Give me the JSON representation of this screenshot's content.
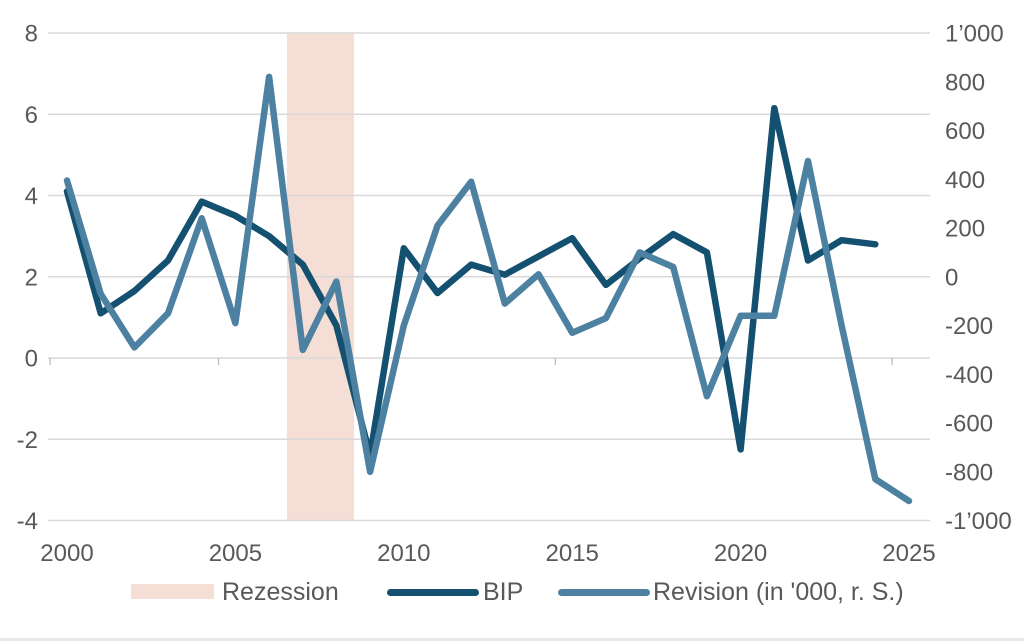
{
  "chart_data": {
    "type": "line",
    "title": "",
    "grid": true,
    "legend_position": "bottom",
    "colors": {
      "bip": "#14506F",
      "revision": "#4D81A2",
      "band": "#F5DED6",
      "gridline": "#D9D9D9",
      "axis_text": "#595959",
      "boundary_tick": "#BFBFBF"
    },
    "x_axis": {
      "min": 2000,
      "max": 2025,
      "tick_labels": [
        "2000",
        "2005",
        "2010",
        "2015",
        "2020",
        "2025"
      ],
      "tick_years": [
        2000,
        2005,
        2010,
        2015,
        2020,
        2025
      ],
      "boundary_tick_years": [
        1999.5,
        2004.5,
        2009.5,
        2014.5,
        2019.5,
        2024.5
      ]
    },
    "left_axis": {
      "min": -4,
      "max": 8,
      "tick_labels": [
        "8",
        "6",
        "4",
        "2",
        "0",
        "-2",
        "-4"
      ],
      "tick_values": [
        8,
        6,
        4,
        2,
        0,
        -2,
        -4
      ]
    },
    "right_axis": {
      "min": -1000,
      "max": 1000,
      "tick_labels": [
        "1’000",
        "800",
        "600",
        "400",
        "200",
        "0",
        "-200",
        "-400",
        "-600",
        "-800",
        "-1’000"
      ],
      "tick_values": [
        1000,
        800,
        600,
        400,
        200,
        0,
        -200,
        -400,
        -600,
        -800,
        -1000
      ]
    },
    "recession_band": {
      "label": "Rezession",
      "x_start": 2006.53,
      "x_end": 2008.52
    },
    "series": [
      {
        "name": "BIP",
        "axis": "left",
        "years": [
          2000,
          2001,
          2002,
          2003,
          2004,
          2005,
          2006,
          2007,
          2008,
          2009,
          2010,
          2011,
          2012,
          2013,
          2014,
          2015,
          2016,
          2017,
          2018,
          2019,
          2020,
          2021,
          2022,
          2023,
          2024
        ],
        "values": [
          4.1,
          1.1,
          1.65,
          2.4,
          3.85,
          3.5,
          3.0,
          2.3,
          0.8,
          -2.4,
          2.7,
          1.6,
          2.3,
          2.05,
          2.5,
          2.95,
          1.8,
          2.45,
          3.05,
          2.6,
          -2.25,
          6.15,
          2.4,
          2.9,
          2.8
        ]
      },
      {
        "name": "Revision (in '000, r. S.)",
        "axis": "right",
        "years": [
          2000,
          2001,
          2002,
          2003,
          2004,
          2005,
          2006,
          2007,
          2008,
          2009,
          2010,
          2011,
          2012,
          2013,
          2014,
          2015,
          2016,
          2017,
          2018,
          2019,
          2020,
          2021,
          2022,
          2023,
          2024,
          2025
        ],
        "values": [
          395,
          -70,
          -290,
          -150,
          240,
          -190,
          820,
          -300,
          -20,
          -800,
          -200,
          210,
          390,
          -110,
          10,
          -230,
          -170,
          100,
          40,
          -490,
          -160,
          -160,
          475,
          -200,
          -830,
          -920
        ]
      }
    ]
  }
}
